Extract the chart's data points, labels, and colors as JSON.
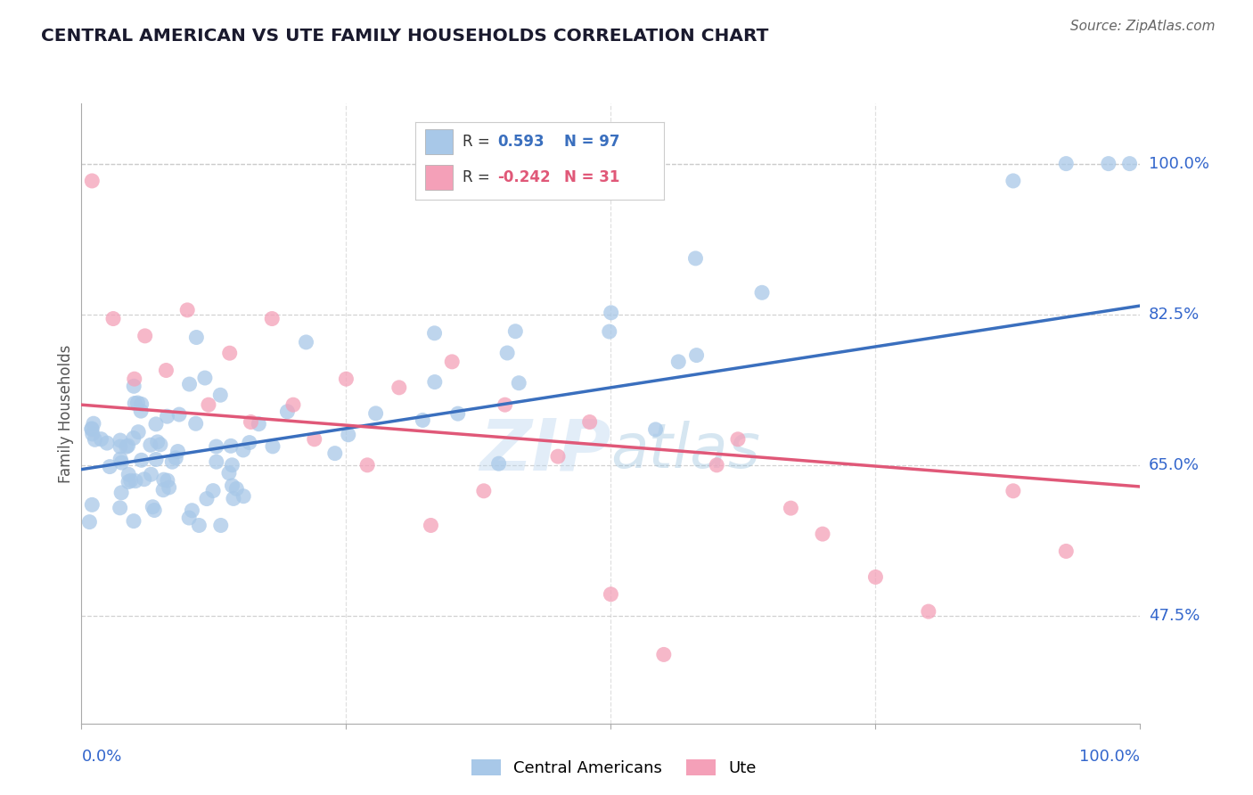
{
  "title": "CENTRAL AMERICAN VS UTE FAMILY HOUSEHOLDS CORRELATION CHART",
  "source": "Source: ZipAtlas.com",
  "ylabel": "Family Households",
  "y_ticks": [
    47.5,
    65.0,
    82.5,
    100.0
  ],
  "y_tick_labels": [
    "47.5%",
    "65.0%",
    "82.5%",
    "100.0%"
  ],
  "xlim": [
    0,
    100
  ],
  "ylim": [
    35,
    107
  ],
  "blue_R": 0.593,
  "blue_N": 97,
  "pink_R": -0.242,
  "pink_N": 31,
  "blue_color": "#a8c8e8",
  "pink_color": "#f4a0b8",
  "blue_line_color": "#3a6fbe",
  "pink_line_color": "#e05878",
  "blue_line_start_y": 64.5,
  "blue_line_end_y": 83.5,
  "pink_line_start_y": 72.0,
  "pink_line_end_y": 62.5,
  "legend_label_blue": "Central Americans",
  "legend_label_pink": "Ute",
  "watermark": "ZIPAtlas",
  "title_color": "#1a1a2e",
  "axis_label_color": "#3366cc",
  "background_color": "#ffffff",
  "grid_color": "#cccccc"
}
